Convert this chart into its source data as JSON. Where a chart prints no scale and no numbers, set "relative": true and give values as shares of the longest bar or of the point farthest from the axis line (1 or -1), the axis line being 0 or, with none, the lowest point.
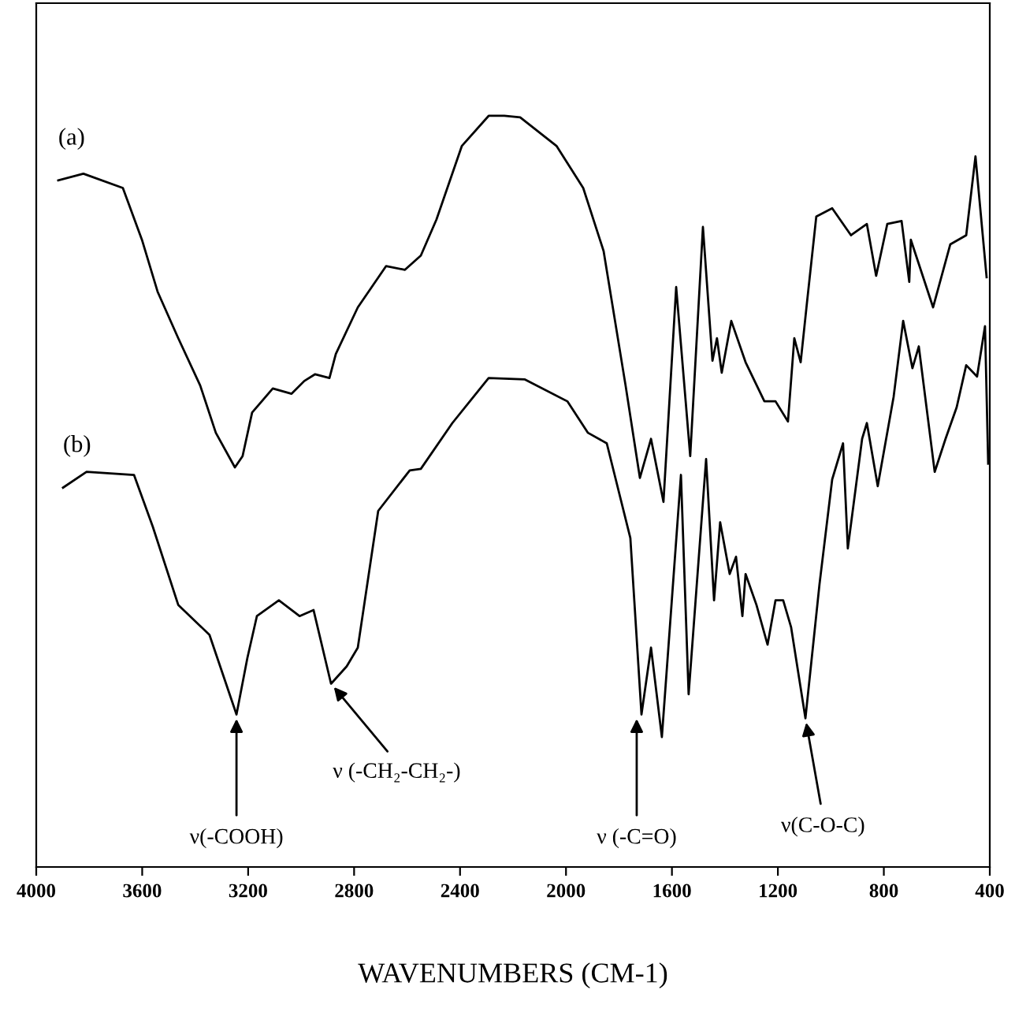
{
  "chart_data": {
    "type": "line",
    "relative": true,
    "xlabel": "WAVENUMBERS (CM-1)",
    "xlim": [
      4000,
      400
    ],
    "xticks": [
      4000,
      3600,
      3200,
      2800,
      2400,
      2000,
      1600,
      1200,
      800,
      400
    ],
    "grid": false,
    "legend": false,
    "marker": "none",
    "line_style": "solid",
    "series": [
      {
        "name": "(a)",
        "color": "#000000",
        "x": [
          3917,
          3822,
          3673,
          3601,
          3542,
          3464,
          3381,
          3322,
          3250,
          3221,
          3185,
          3107,
          3036,
          2988,
          2947,
          2893,
          2869,
          2786,
          2679,
          2608,
          2548,
          2489,
          2393,
          2292,
          2233,
          2173,
          2036,
          1935,
          1858,
          1775,
          1721,
          1679,
          1632,
          1584,
          1531,
          1483,
          1447,
          1430,
          1412,
          1376,
          1322,
          1251,
          1209,
          1162,
          1138,
          1114,
          1090,
          1055,
          995,
          924,
          864,
          829,
          787,
          733,
          704,
          698,
          614,
          549,
          489,
          454,
          412
        ],
        "values": [
          0.914,
          0.923,
          0.904,
          0.835,
          0.766,
          0.704,
          0.641,
          0.578,
          0.532,
          0.547,
          0.605,
          0.637,
          0.63,
          0.647,
          0.656,
          0.651,
          0.683,
          0.745,
          0.8,
          0.795,
          0.814,
          0.862,
          0.96,
          1.0,
          1.0,
          0.998,
          0.96,
          0.904,
          0.82,
          0.641,
          0.518,
          0.57,
          0.486,
          0.772,
          0.547,
          0.852,
          0.674,
          0.704,
          0.658,
          0.727,
          0.672,
          0.62,
          0.62,
          0.593,
          0.704,
          0.672,
          0.752,
          0.866,
          0.877,
          0.841,
          0.856,
          0.787,
          0.856,
          0.86,
          0.779,
          0.835,
          0.745,
          0.829,
          0.841,
          0.946,
          0.785
        ]
      },
      {
        "name": "(b)",
        "color": "#000000",
        "x": [
          3899,
          3810,
          3631,
          3560,
          3464,
          3346,
          3244,
          3203,
          3167,
          3084,
          3006,
          2953,
          2887,
          2828,
          2786,
          2709,
          2590,
          2548,
          2429,
          2292,
          2155,
          1995,
          1917,
          1846,
          1757,
          1715,
          1679,
          1638,
          1566,
          1537,
          1471,
          1441,
          1418,
          1382,
          1358,
          1334,
          1322,
          1281,
          1239,
          1209,
          1180,
          1150,
          1096,
          1043,
          995,
          954,
          936,
          882,
          864,
          823,
          763,
          727,
          692,
          668,
          608,
          567,
          525,
          489,
          448,
          418,
          406
        ],
        "values": [
          0.505,
          0.526,
          0.522,
          0.453,
          0.349,
          0.309,
          0.203,
          0.278,
          0.334,
          0.355,
          0.334,
          0.342,
          0.244,
          0.267,
          0.292,
          0.474,
          0.528,
          0.53,
          0.591,
          0.651,
          0.649,
          0.62,
          0.578,
          0.564,
          0.438,
          0.203,
          0.292,
          0.173,
          0.522,
          0.23,
          0.543,
          0.355,
          0.459,
          0.39,
          0.413,
          0.334,
          0.39,
          0.349,
          0.296,
          0.355,
          0.355,
          0.319,
          0.198,
          0.376,
          0.516,
          0.564,
          0.424,
          0.57,
          0.591,
          0.507,
          0.626,
          0.727,
          0.664,
          0.693,
          0.526,
          0.57,
          0.612,
          0.668,
          0.653,
          0.72,
          0.537
        ]
      }
    ],
    "annotations": [
      {
        "text": "ν(-COOH)",
        "x": 3244,
        "y": 0.203
      },
      {
        "text": "ν (-CH₂-CH₂-)",
        "x": 2887,
        "y": 0.244
      },
      {
        "text": "ν (-C=O)",
        "x": 1733,
        "y": 0.203
      },
      {
        "text": "ν(C-O-C)",
        "x": 1096,
        "y": 0.198
      }
    ]
  }
}
